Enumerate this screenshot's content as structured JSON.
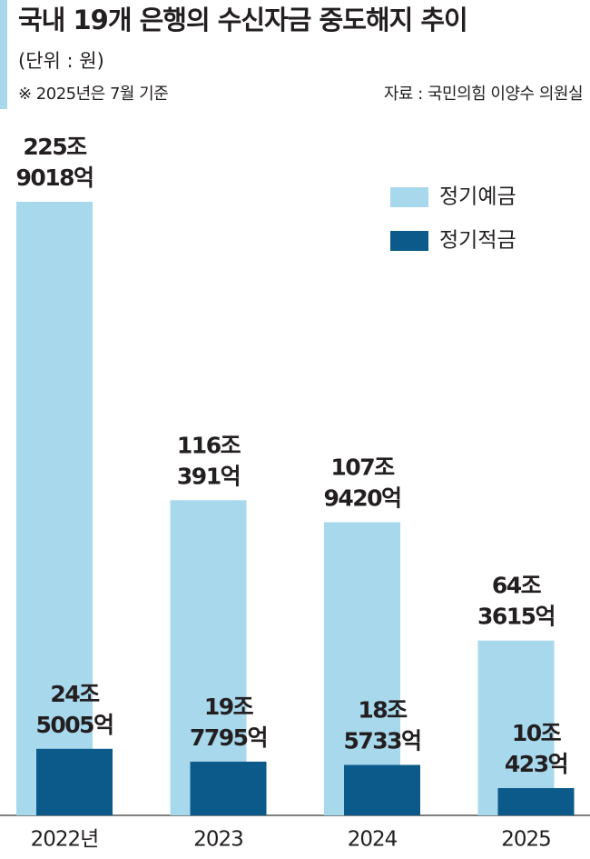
{
  "chart_data": {
    "type": "bar",
    "title": "국내 19개 은행의 수신자금 중도해지 추이",
    "subtitle": "(단위 : 원)",
    "note": "※ 2025년은 7월 기준",
    "source": "자료 : 국민의힘 이양수 의원실",
    "categories": [
      "2022년",
      "2023",
      "2024",
      "2025"
    ],
    "series": [
      {
        "name": "정기예금",
        "color": "#a7d8ec",
        "values": [
          225901800000000,
          116039100000000,
          107942000000000,
          64361500000000
        ],
        "value_labels": [
          "225조 9018억",
          "116조 391억",
          "107조 9420억",
          "64조 3615억"
        ]
      },
      {
        "name": "정기적금",
        "color": "#0b5a8a",
        "values": [
          24500500000000,
          19779500000000,
          18573300000000,
          10042300000000
        ],
        "value_labels": [
          "24조 5005억",
          "19조 7795억",
          "18조 5733억",
          "10조 423억"
        ]
      }
    ]
  }
}
